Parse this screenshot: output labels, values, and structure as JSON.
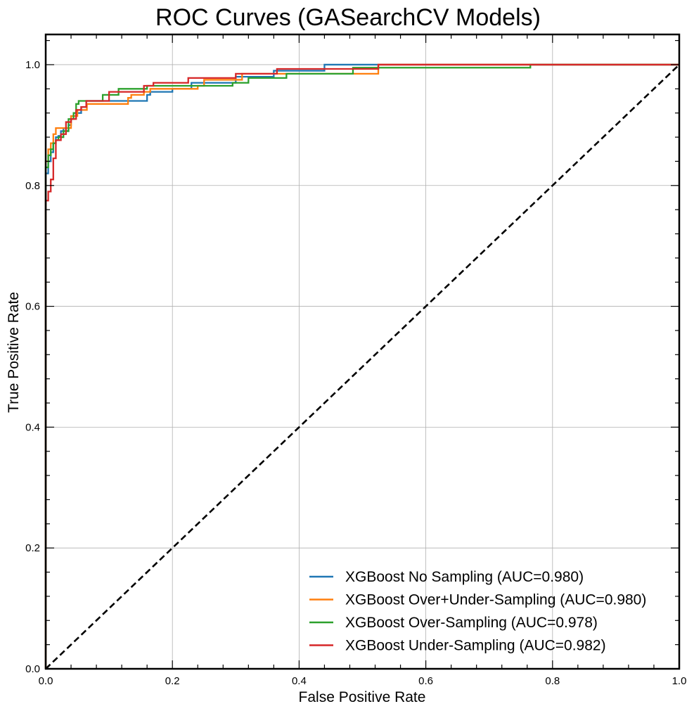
{
  "chart_data": {
    "type": "line",
    "title": "ROC Curves (GASearchCV Models)",
    "xlabel": "False Positive Rate",
    "ylabel": "True Positive Rate",
    "xlim": [
      0.0,
      1.0
    ],
    "ylim": [
      0.0,
      1.05
    ],
    "xticks": [
      0.0,
      0.2,
      0.4,
      0.6,
      0.8,
      1.0
    ],
    "xtick_labels": [
      "0.0",
      "0.2",
      "0.4",
      "0.6",
      "0.8",
      "1.0"
    ],
    "yticks": [
      0.0,
      0.2,
      0.4,
      0.6,
      0.8,
      1.0
    ],
    "ytick_labels": [
      "0.0",
      "0.2",
      "0.4",
      "0.6",
      "0.8",
      "1.0"
    ],
    "grid": true,
    "legend_position": "lower-right",
    "diagonal": {
      "x": [
        0.0,
        1.0
      ],
      "y": [
        0.0,
        1.0
      ],
      "color": "#000000",
      "style": "dashed"
    },
    "series": [
      {
        "name": "XGBoost No Sampling (AUC=0.980)",
        "color": "#1f77b4",
        "x": [
          0.0,
          0.0,
          0.004,
          0.004,
          0.008,
          0.008,
          0.012,
          0.012,
          0.016,
          0.016,
          0.02,
          0.02,
          0.024,
          0.024,
          0.028,
          0.028,
          0.032,
          0.032,
          0.036,
          0.036,
          0.04,
          0.04,
          0.048,
          0.048,
          0.056,
          0.056,
          0.064,
          0.064,
          0.1,
          0.1,
          0.16,
          0.16,
          0.165,
          0.165,
          0.2,
          0.2,
          0.23,
          0.23,
          0.3,
          0.3,
          0.36,
          0.36,
          0.44,
          0.44,
          1.0
        ],
        "y": [
          0.0,
          0.82,
          0.82,
          0.84,
          0.84,
          0.855,
          0.855,
          0.87,
          0.87,
          0.88,
          0.88,
          0.882,
          0.882,
          0.89,
          0.89,
          0.895,
          0.895,
          0.89,
          0.89,
          0.9,
          0.9,
          0.915,
          0.915,
          0.92,
          0.92,
          0.93,
          0.93,
          0.94,
          0.94,
          0.94,
          0.94,
          0.95,
          0.95,
          0.955,
          0.955,
          0.96,
          0.96,
          0.97,
          0.97,
          0.98,
          0.98,
          0.99,
          0.99,
          1.0,
          1.0
        ]
      },
      {
        "name": "XGBoost Over+Under-Sampling (AUC=0.980)",
        "color": "#ff7f0e",
        "x": [
          0.0,
          0.0,
          0.004,
          0.004,
          0.008,
          0.008,
          0.012,
          0.012,
          0.016,
          0.016,
          0.024,
          0.024,
          0.04,
          0.04,
          0.05,
          0.05,
          0.065,
          0.065,
          0.13,
          0.13,
          0.135,
          0.135,
          0.155,
          0.155,
          0.165,
          0.165,
          0.24,
          0.24,
          0.25,
          0.25,
          0.31,
          0.31,
          0.525,
          0.525,
          1.0
        ],
        "y": [
          0.0,
          0.84,
          0.84,
          0.86,
          0.86,
          0.87,
          0.87,
          0.885,
          0.885,
          0.895,
          0.895,
          0.895,
          0.895,
          0.915,
          0.915,
          0.925,
          0.925,
          0.935,
          0.935,
          0.945,
          0.945,
          0.95,
          0.95,
          0.955,
          0.955,
          0.96,
          0.96,
          0.965,
          0.965,
          0.975,
          0.975,
          0.985,
          0.985,
          1.0,
          1.0
        ]
      },
      {
        "name": "XGBoost Over-Sampling (AUC=0.978)",
        "color": "#2ca02c",
        "x": [
          0.0,
          0.0,
          0.004,
          0.004,
          0.008,
          0.008,
          0.012,
          0.012,
          0.016,
          0.016,
          0.02,
          0.02,
          0.028,
          0.028,
          0.036,
          0.036,
          0.044,
          0.044,
          0.048,
          0.048,
          0.052,
          0.052,
          0.09,
          0.09,
          0.115,
          0.115,
          0.16,
          0.16,
          0.295,
          0.295,
          0.32,
          0.32,
          0.38,
          0.38,
          0.485,
          0.485,
          0.765,
          0.765,
          1.0
        ],
        "y": [
          0.0,
          0.83,
          0.83,
          0.85,
          0.85,
          0.86,
          0.86,
          0.87,
          0.87,
          0.875,
          0.875,
          0.88,
          0.88,
          0.89,
          0.89,
          0.91,
          0.91,
          0.92,
          0.92,
          0.935,
          0.935,
          0.94,
          0.94,
          0.95,
          0.95,
          0.96,
          0.96,
          0.965,
          0.965,
          0.97,
          0.97,
          0.978,
          0.978,
          0.985,
          0.985,
          0.995,
          0.995,
          1.0,
          1.0
        ]
      },
      {
        "name": "XGBoost Under-Sampling (AUC=0.982)",
        "color": "#d62728",
        "x": [
          0.0,
          0.0,
          0.004,
          0.004,
          0.008,
          0.008,
          0.012,
          0.012,
          0.016,
          0.016,
          0.024,
          0.024,
          0.032,
          0.032,
          0.04,
          0.04,
          0.048,
          0.048,
          0.056,
          0.056,
          0.064,
          0.064,
          0.1,
          0.1,
          0.155,
          0.155,
          0.17,
          0.17,
          0.225,
          0.225,
          0.3,
          0.3,
          0.365,
          0.365,
          0.525,
          0.525,
          1.0
        ],
        "y": [
          0.0,
          0.775,
          0.775,
          0.79,
          0.79,
          0.81,
          0.81,
          0.845,
          0.845,
          0.875,
          0.875,
          0.885,
          0.885,
          0.905,
          0.905,
          0.91,
          0.91,
          0.925,
          0.925,
          0.93,
          0.93,
          0.94,
          0.94,
          0.955,
          0.955,
          0.965,
          0.965,
          0.97,
          0.97,
          0.978,
          0.978,
          0.985,
          0.985,
          0.993,
          0.993,
          1.0,
          1.0
        ]
      }
    ]
  }
}
